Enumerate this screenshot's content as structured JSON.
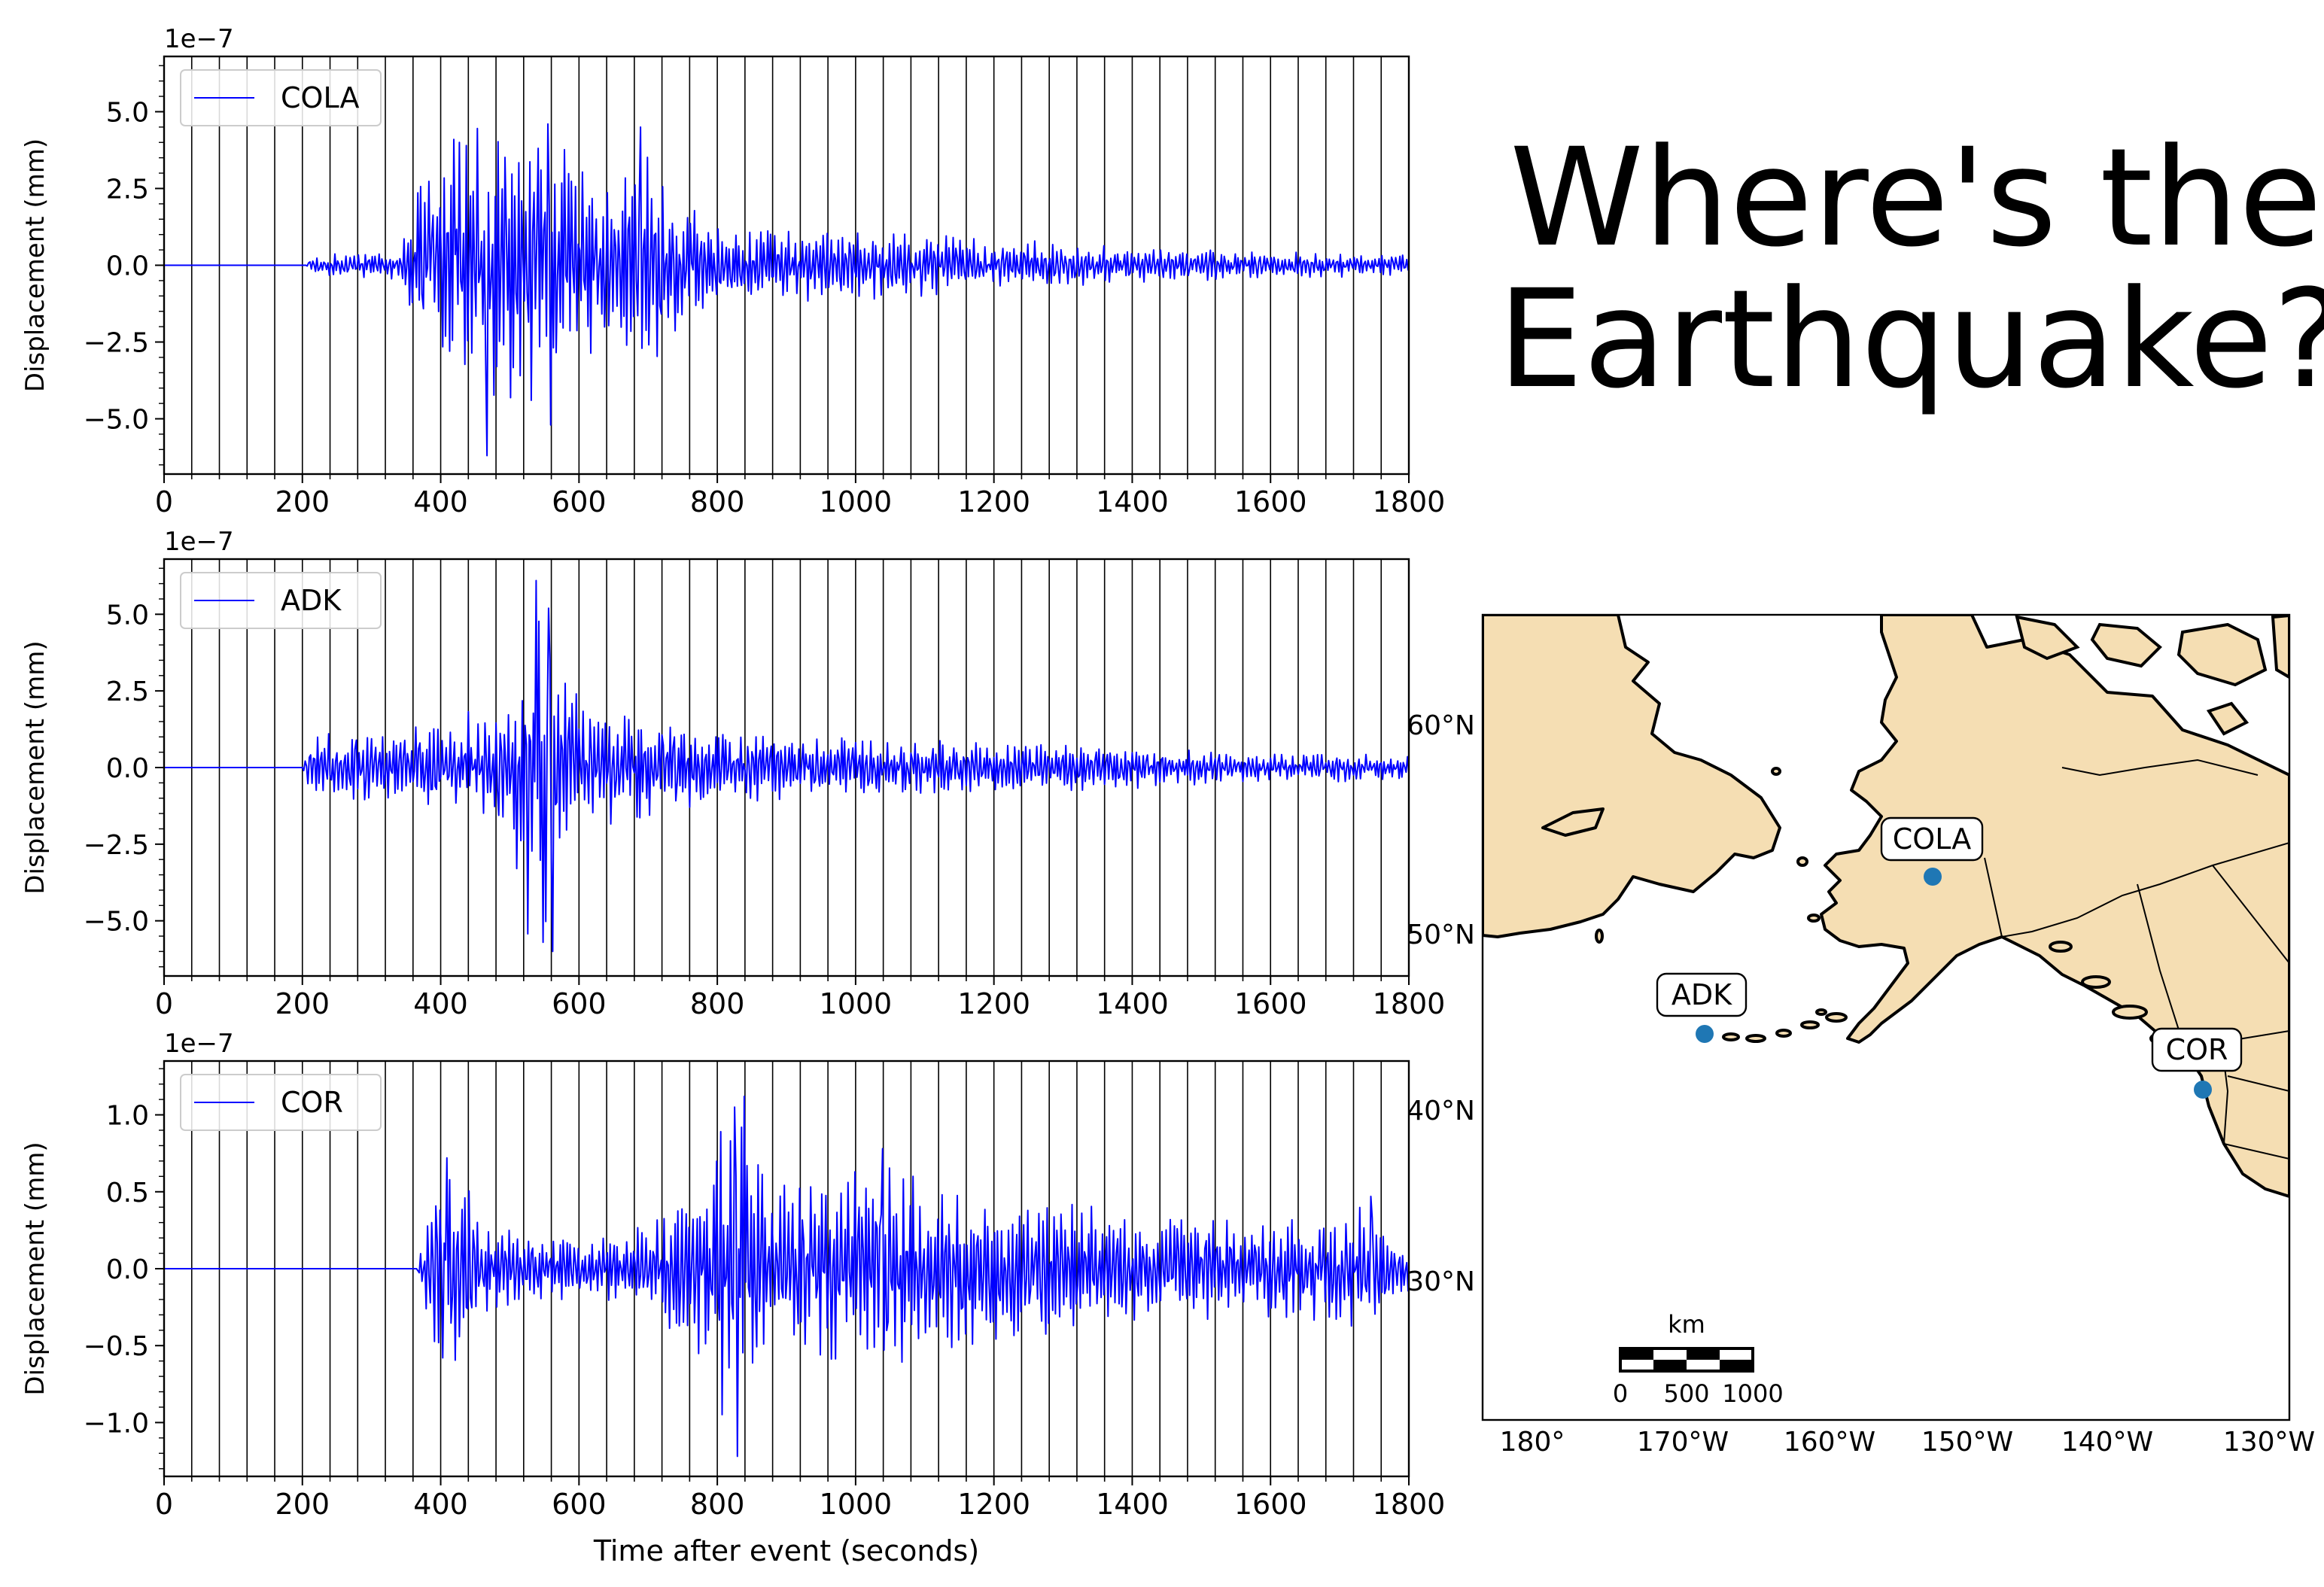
{
  "title": {
    "line1": "Where's the",
    "line2": "Earthquake?"
  },
  "chart_data": [
    {
      "type": "line",
      "station": "COLA",
      "xlabel": "",
      "ylabel": "Displacement (mm)",
      "y_scale_label": "1e−7",
      "xlim": [
        0,
        1800
      ],
      "ylim": [
        -6.8,
        6.8
      ],
      "x_ticks": [
        "0",
        "200",
        "400",
        "600",
        "800",
        "1000",
        "1200",
        "1400",
        "1600",
        "1800"
      ],
      "y_ticks": [
        "5.0",
        "2.5",
        "0.0",
        "−2.5",
        "−5.0"
      ],
      "y_tick_values": [
        5.0,
        2.5,
        0.0,
        -2.5,
        -5.0
      ],
      "series": [
        {
          "name": "COLA",
          "color": "#0000ff"
        }
      ],
      "signal_onset_s": 205,
      "envelope": [
        [
          0,
          0
        ],
        [
          205,
          0
        ],
        [
          215,
          0.35
        ],
        [
          340,
          0.5
        ],
        [
          360,
          2.5
        ],
        [
          400,
          3.8
        ],
        [
          470,
          4.7
        ],
        [
          560,
          4.4
        ],
        [
          620,
          3.2
        ],
        [
          690,
          4.0
        ],
        [
          740,
          2.3
        ],
        [
          800,
          1.3
        ],
        [
          1000,
          1.2
        ],
        [
          1100,
          1.1
        ],
        [
          1200,
          0.9
        ],
        [
          1400,
          0.6
        ],
        [
          1600,
          0.45
        ],
        [
          1800,
          0.35
        ]
      ],
      "peaks": [
        [
          468,
          -6.2
        ],
        [
          555,
          4.6
        ],
        [
          690,
          4.5
        ],
        [
          560,
          -5.2
        ],
        [
          420,
          4.1
        ]
      ],
      "grid": "vertical"
    },
    {
      "type": "line",
      "station": "ADK",
      "xlabel": "",
      "ylabel": "Displacement (mm)",
      "y_scale_label": "1e−7",
      "xlim": [
        0,
        1800
      ],
      "ylim": [
        -6.8,
        6.8
      ],
      "x_ticks": [
        "0",
        "200",
        "400",
        "600",
        "800",
        "1000",
        "1200",
        "1400",
        "1600",
        "1800"
      ],
      "y_ticks": [
        "5.0",
        "2.5",
        "0.0",
        "−2.5",
        "−5.0"
      ],
      "y_tick_values": [
        5.0,
        2.5,
        0.0,
        -2.5,
        -5.0
      ],
      "series": [
        {
          "name": "ADK",
          "color": "#0000ff"
        }
      ],
      "signal_onset_s": 200,
      "envelope": [
        [
          0,
          0
        ],
        [
          200,
          0
        ],
        [
          215,
          1.1
        ],
        [
          300,
          1.3
        ],
        [
          400,
          1.6
        ],
        [
          500,
          2.2
        ],
        [
          525,
          5.8
        ],
        [
          545,
          6.0
        ],
        [
          580,
          3.5
        ],
        [
          620,
          2.2
        ],
        [
          700,
          1.8
        ],
        [
          800,
          1.3
        ],
        [
          1000,
          1.0
        ],
        [
          1200,
          0.9
        ],
        [
          1400,
          0.7
        ],
        [
          1600,
          0.5
        ],
        [
          1800,
          0.45
        ]
      ],
      "peaks": [
        [
          538,
          6.1
        ],
        [
          548,
          -5.7
        ],
        [
          562,
          -6.0
        ],
        [
          555,
          5.2
        ]
      ],
      "grid": "vertical"
    },
    {
      "type": "line",
      "station": "COR",
      "xlabel": "Time after event (seconds)",
      "ylabel": "Displacement (mm)",
      "y_scale_label": "1e−7",
      "xlim": [
        0,
        1800
      ],
      "ylim": [
        -1.35,
        1.35
      ],
      "x_ticks": [
        "0",
        "200",
        "400",
        "600",
        "800",
        "1000",
        "1200",
        "1400",
        "1600",
        "1800"
      ],
      "y_ticks": [
        "1.0",
        "0.5",
        "0.0",
        "−0.5",
        "−1.0"
      ],
      "y_tick_values": [
        1.0,
        0.5,
        0.0,
        -0.5,
        -1.0
      ],
      "series": [
        {
          "name": "COR",
          "color": "#0000ff"
        }
      ],
      "signal_onset_s": 365,
      "envelope": [
        [
          0,
          0
        ],
        [
          365,
          0
        ],
        [
          380,
          0.35
        ],
        [
          400,
          0.6
        ],
        [
          430,
          0.7
        ],
        [
          460,
          0.3
        ],
        [
          600,
          0.2
        ],
        [
          700,
          0.3
        ],
        [
          780,
          0.6
        ],
        [
          810,
          1.05
        ],
        [
          840,
          1.12
        ],
        [
          880,
          0.6
        ],
        [
          1000,
          0.65
        ],
        [
          1040,
          0.75
        ],
        [
          1100,
          0.6
        ],
        [
          1300,
          0.45
        ],
        [
          1500,
          0.35
        ],
        [
          1700,
          0.35
        ],
        [
          1750,
          0.45
        ],
        [
          1800,
          0.2
        ]
      ],
      "peaks": [
        [
          840,
          1.12
        ],
        [
          825,
          1.05
        ],
        [
          830,
          -1.22
        ],
        [
          1040,
          0.78
        ],
        [
          1745,
          0.47
        ],
        [
          410,
          0.72
        ]
      ],
      "grid": "vertical"
    },
    {
      "type": "map",
      "projection": "lambert-conformal",
      "land_color": "#f5deb3",
      "x_ticks": [
        "180°",
        "170°W",
        "160°W",
        "150°W",
        "140°W",
        "130°W"
      ],
      "y_ticks": [
        "60°N",
        "50°N",
        "40°N",
        "30°N"
      ],
      "stations": [
        {
          "name": "COLA",
          "lat": 64.87,
          "lon": -147.86,
          "color": "#1f77b4"
        },
        {
          "name": "ADK",
          "lat": 51.88,
          "lon": -176.68,
          "color": "#1f77b4"
        },
        {
          "name": "COR",
          "lat": 44.59,
          "lon": -123.3,
          "color": "#1f77b4"
        }
      ],
      "scale_bar": {
        "unit": "km",
        "ticks": [
          "0",
          "500",
          "1000"
        ]
      }
    }
  ]
}
